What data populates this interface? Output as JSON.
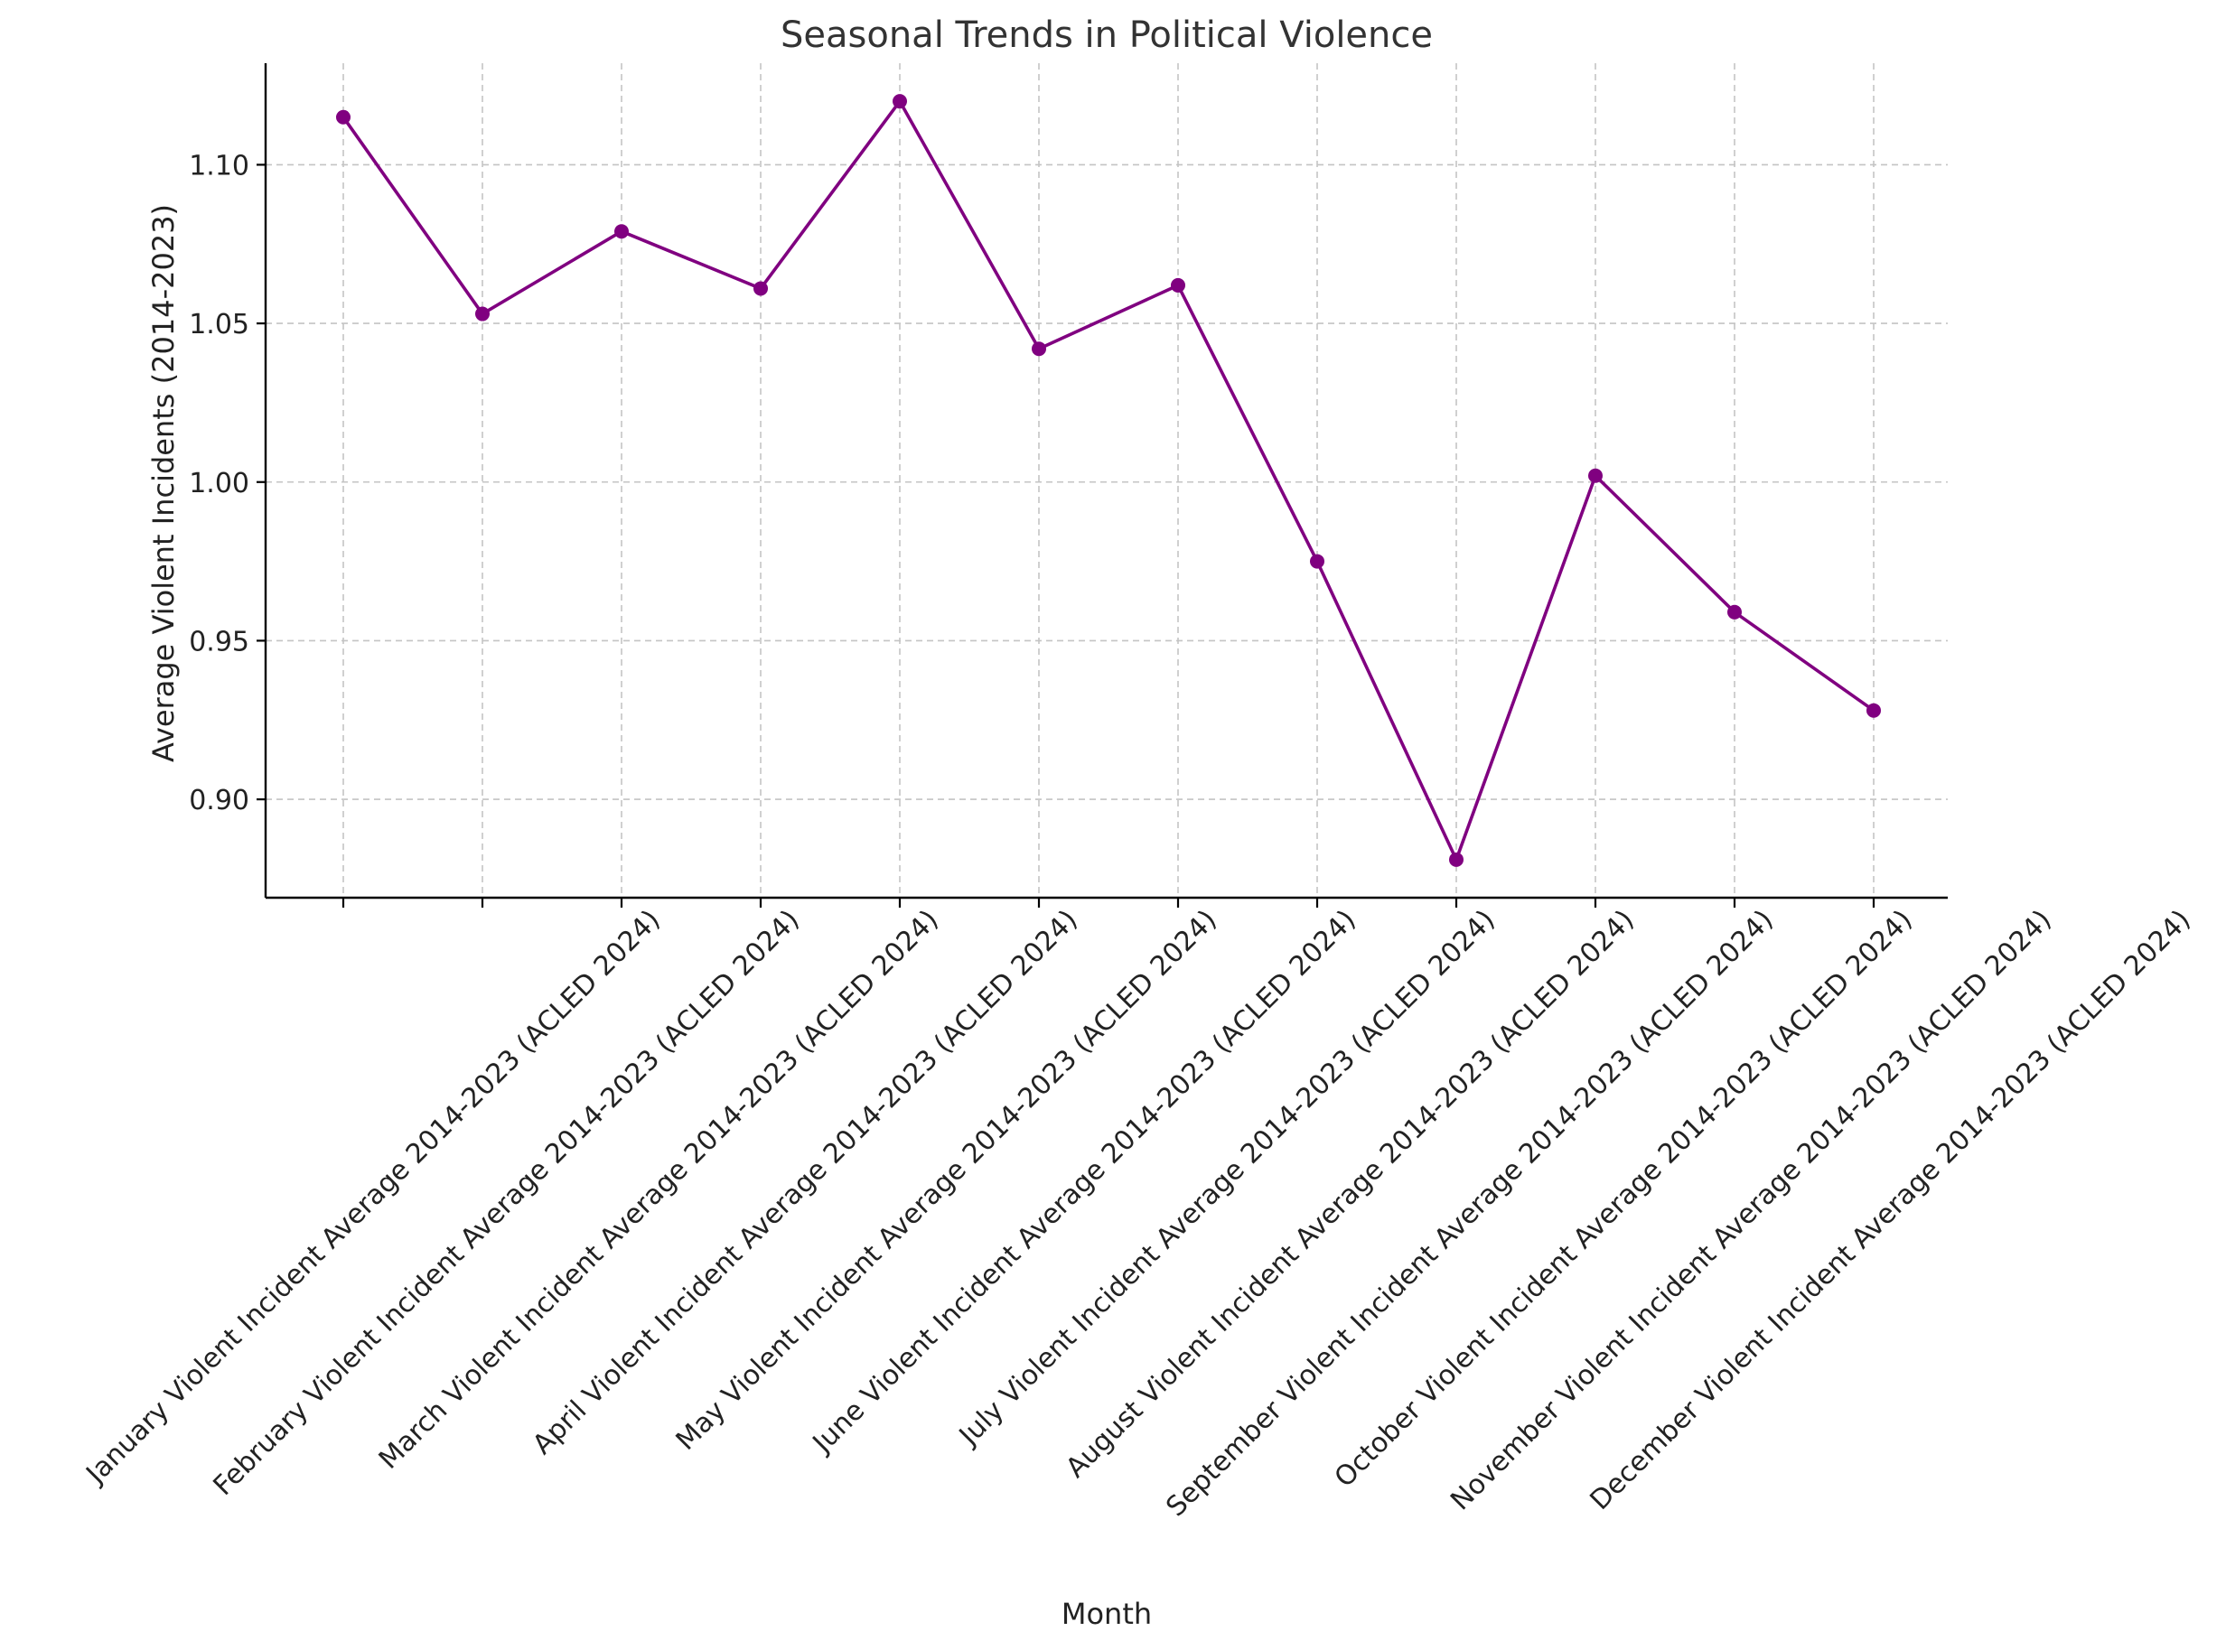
{
  "chart_data": {
    "type": "line",
    "title": "Seasonal Trends in Political Violence",
    "xlabel": "Month",
    "ylabel": "Average Violent Incidents (2014-2023)",
    "ylim": [
      0.869,
      1.132
    ],
    "yticks": [
      0.9,
      0.95,
      1.0,
      1.05,
      1.1
    ],
    "ytick_labels": [
      "0.90",
      "0.95",
      "1.00",
      "1.05",
      "1.10"
    ],
    "grid": true,
    "line_color": "#800080",
    "marker": "circle",
    "categories": [
      "January Violent Incident Average 2014-2023 (ACLED 2024)",
      "February Violent Incident Average 2014-2023 (ACLED 2024)",
      "March Violent Incident Average 2014-2023 (ACLED 2024)",
      "April Violent Incident Average 2014-2023 (ACLED 2024)",
      "May Violent Incident Average 2014-2023 (ACLED 2024)",
      "June Violent Incident Average 2014-2023 (ACLED 2024)",
      "July Violent Incident Average 2014-2023 (ACLED 2024)",
      "August Violent Incident Average 2014-2023 (ACLED 2024)",
      "September Violent Incident Average 2014-2023 (ACLED 2024)",
      "October Violent Incident Average 2014-2023 (ACLED 2024)",
      "November Violent Incident Average 2014-2023 (ACLED 2024)",
      "December Violent Incident Average 2014-2023 (ACLED 2024)"
    ],
    "series": [
      {
        "values": [
          1.115,
          1.053,
          1.079,
          1.061,
          1.12,
          1.042,
          1.062,
          0.975,
          0.881,
          1.002,
          0.959,
          0.928
        ]
      }
    ]
  }
}
